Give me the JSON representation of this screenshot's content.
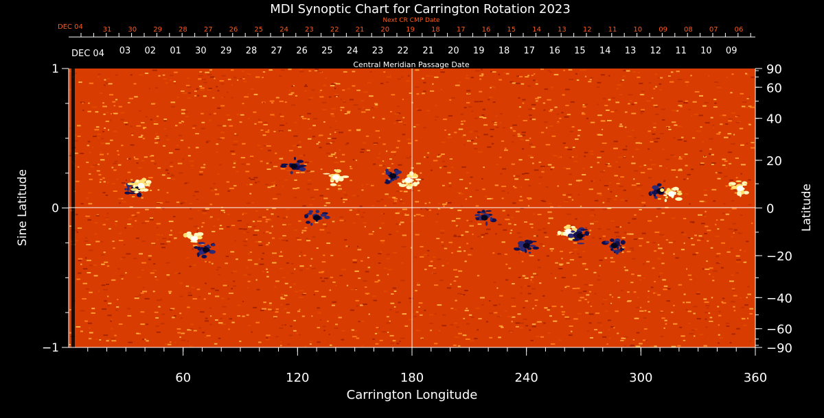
{
  "chart_data": {
    "type": "heatmap",
    "title": "MDI Synoptic Chart for Carrington Rotation 2023",
    "xlabel": "Carrington Longitude",
    "ylabel_left": "Sine Latitude",
    "ylabel_right": "Latitude",
    "top_axis_red_title": "Next CR CMP Date",
    "top_axis_white_title": "Central Meridian Passage Date",
    "xlim": [
      0,
      360
    ],
    "ylim": [
      -1,
      1
    ],
    "x_ticks": [
      60,
      120,
      180,
      240,
      300,
      360
    ],
    "y_ticks_left": [
      1,
      0,
      -1
    ],
    "y_ticks_left_labels": [
      "1",
      "0",
      "−1"
    ],
    "y_ticks_right": [
      90,
      60,
      40,
      20,
      0,
      -20,
      -40,
      -60,
      -90
    ],
    "y_ticks_right_labels": [
      "90",
      "60",
      "40",
      "20",
      "0",
      "−20",
      "−40",
      "−60",
      "−90"
    ],
    "red_start_label": "DEC 04",
    "red_date_labels": [
      "31",
      "30",
      "29",
      "28",
      "27",
      "26",
      "25",
      "24",
      "23",
      "22",
      "21",
      "20",
      "19",
      "18",
      "17",
      "16",
      "15",
      "14",
      "13",
      "12",
      "11",
      "10",
      "09",
      "08",
      "07",
      "06"
    ],
    "white_start_label": "DEC 04",
    "white_date_labels": [
      "03",
      "02",
      "01",
      "30",
      "29",
      "28",
      "27",
      "26",
      "25",
      "24",
      "23",
      "22",
      "21",
      "20",
      "19",
      "18",
      "17",
      "16",
      "15",
      "14",
      "13",
      "12",
      "11",
      "10",
      "09"
    ],
    "colors": {
      "background": "#000000",
      "text": "#ffffff",
      "red_axis": "#ff5a1e",
      "field_base": "#d83c00",
      "positive": "#fff8c0",
      "negative": "#101050"
    },
    "active_regions": [
      {
        "lon": 35,
        "sinlat": 0.14,
        "polarity": "negative"
      },
      {
        "lon": 38,
        "sinlat": 0.16,
        "polarity": "positive"
      },
      {
        "lon": 66,
        "sinlat": -0.22,
        "polarity": "positive"
      },
      {
        "lon": 72,
        "sinlat": -0.3,
        "polarity": "negative"
      },
      {
        "lon": 118,
        "sinlat": 0.3,
        "polarity": "negative"
      },
      {
        "lon": 140,
        "sinlat": 0.22,
        "polarity": "positive"
      },
      {
        "lon": 130,
        "sinlat": -0.07,
        "polarity": "negative"
      },
      {
        "lon": 170,
        "sinlat": 0.23,
        "polarity": "negative"
      },
      {
        "lon": 178,
        "sinlat": 0.2,
        "polarity": "positive"
      },
      {
        "lon": 218,
        "sinlat": -0.07,
        "polarity": "negative"
      },
      {
        "lon": 240,
        "sinlat": -0.27,
        "polarity": "negative"
      },
      {
        "lon": 262,
        "sinlat": -0.17,
        "polarity": "positive"
      },
      {
        "lon": 268,
        "sinlat": -0.2,
        "polarity": "negative"
      },
      {
        "lon": 286,
        "sinlat": -0.27,
        "polarity": "negative"
      },
      {
        "lon": 310,
        "sinlat": 0.12,
        "polarity": "negative"
      },
      {
        "lon": 316,
        "sinlat": 0.1,
        "polarity": "positive"
      },
      {
        "lon": 352,
        "sinlat": 0.14,
        "polarity": "positive"
      }
    ]
  }
}
